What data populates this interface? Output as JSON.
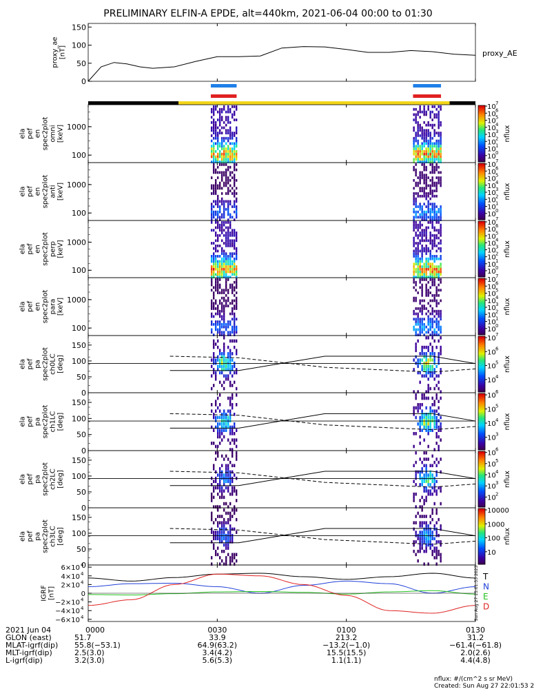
{
  "title": "PRELIMINARY ELFIN-A EPDE, alt=440km, 2021-06-04 00:00 to 01:30",
  "colors": {
    "blue_bar": "#1e7fe8",
    "red_bar": "#e02020",
    "yellow_bar": "#f2d51a",
    "black_bar": "#000000",
    "T": "#000000",
    "N": "#1f3fd8",
    "E": "#21c21a",
    "D": "#e02020"
  },
  "chart_data": [
    {
      "type": "line",
      "panel": "proxy_ae",
      "ylabel": [
        "proxy_ae",
        "[nT]"
      ],
      "legend": "proxy_AE",
      "ylim": [
        0,
        160
      ],
      "yticks": [
        "150",
        "100",
        "50",
        "0"
      ],
      "x_minutes": [
        0,
        3,
        6,
        9,
        12,
        15,
        20,
        25,
        30,
        35,
        40,
        45,
        50,
        55,
        60,
        65,
        70,
        75,
        80,
        85,
        90
      ],
      "values": [
        0,
        40,
        52,
        48,
        40,
        36,
        40,
        55,
        68,
        68,
        70,
        92,
        96,
        95,
        88,
        80,
        80,
        85,
        82,
        75,
        72
      ]
    },
    {
      "type": "segments",
      "panel": "science_zone_bars",
      "blue": [
        [
          28.5,
          34.5
        ],
        [
          75.5,
          82
        ]
      ],
      "red": [
        [
          28.5,
          34.5
        ],
        [
          75.5,
          82
        ]
      ],
      "status": [
        {
          "from": 0,
          "to": 21,
          "color": "black"
        },
        {
          "from": 21,
          "to": 84,
          "color": "yellow"
        },
        {
          "from": 84,
          "to": 90,
          "color": "black"
        }
      ]
    },
    {
      "type": "heatmap",
      "panel": "spec_omni",
      "ylabel": [
        "ela",
        "pef",
        "en",
        "spec2plot",
        "omni",
        "[keV]"
      ],
      "yticks": [
        "1000",
        "100"
      ],
      "cbar_ticks": [
        "10",
        "10",
        "10",
        "10",
        "10",
        "10",
        "10",
        "10"
      ],
      "cbar_exp": [
        "7",
        "6",
        "5",
        "4",
        "3",
        "2",
        "1",
        "0"
      ],
      "cbar_label": "nflux",
      "bursts": [
        [
          28.5,
          34.5,
          1.0
        ],
        [
          75.5,
          82,
          1.0
        ]
      ]
    },
    {
      "type": "heatmap",
      "panel": "spec_anti",
      "ylabel": [
        "ela",
        "pef",
        "en",
        "spec2plot",
        "anti",
        "[keV]"
      ],
      "yticks": [
        "1000",
        "100"
      ],
      "cbar_ticks": [
        "10",
        "10",
        "10",
        "10",
        "10",
        "10",
        "10",
        "10"
      ],
      "cbar_exp": [
        "7",
        "6",
        "5",
        "4",
        "3",
        "2",
        "1",
        "0"
      ],
      "cbar_label": "nflux",
      "bursts": [
        [
          28.5,
          34.5,
          0.35
        ],
        [
          75.5,
          82,
          0.45
        ]
      ]
    },
    {
      "type": "heatmap",
      "panel": "spec_perp",
      "ylabel": [
        "ela",
        "pef",
        "en",
        "spec2plot",
        "perp",
        "[keV]"
      ],
      "yticks": [
        "1000",
        "100"
      ],
      "cbar_ticks": [
        "10",
        "10",
        "10",
        "10",
        "10",
        "10",
        "10",
        "10"
      ],
      "cbar_exp": [
        "7",
        "6",
        "5",
        "4",
        "3",
        "2",
        "1",
        "0"
      ],
      "cbar_label": "nflux",
      "bursts": [
        [
          28.5,
          34.5,
          1.0
        ],
        [
          75.5,
          82,
          1.0
        ]
      ]
    },
    {
      "type": "heatmap",
      "panel": "spec_para",
      "ylabel": [
        "ela",
        "pef",
        "en",
        "spec2plot",
        "para",
        "[keV]"
      ],
      "yticks": [
        "1000",
        "100"
      ],
      "cbar_ticks": [
        "10",
        "10",
        "10",
        "10",
        "10",
        "10",
        "10",
        "10"
      ],
      "cbar_exp": [
        "7",
        "6",
        "5",
        "4",
        "3",
        "2",
        "1",
        "0"
      ],
      "cbar_label": "nflux",
      "bursts": [
        [
          28.5,
          34.5,
          0.35
        ],
        [
          75.5,
          82,
          0.45
        ]
      ]
    },
    {
      "type": "heatmap",
      "panel": "pa_ch0",
      "ylabel": [
        "ela",
        "pef",
        "pa",
        "spec2plot",
        "ch0LC",
        "[deg]"
      ],
      "yticks": [
        "150",
        "100",
        "50",
        "0"
      ],
      "ylim": [
        0,
        180
      ],
      "cbar_ticks": [
        "10",
        "10",
        "10",
        "10"
      ],
      "cbar_exp": [
        "7",
        "6",
        "5",
        "4"
      ],
      "cbar_label": "nflux",
      "bursts": [
        [
          28.5,
          34.5,
          0.9
        ],
        [
          75.5,
          82,
          1.0
        ]
      ]
    },
    {
      "type": "heatmap",
      "panel": "pa_ch1",
      "ylabel": [
        "ela",
        "pef",
        "pa",
        "spec2plot",
        "ch1LC",
        "[deg]"
      ],
      "yticks": [
        "150",
        "100",
        "50",
        "0"
      ],
      "ylim": [
        0,
        180
      ],
      "cbar_ticks": [
        "10",
        "10",
        "10",
        "10"
      ],
      "cbar_exp": [
        "6",
        "5",
        "4",
        "3"
      ],
      "cbar_label": "nflux",
      "bursts": [
        [
          28.5,
          34.5,
          0.8
        ],
        [
          75.5,
          82,
          0.95
        ]
      ]
    },
    {
      "type": "heatmap",
      "panel": "pa_ch2",
      "ylabel": [
        "ela",
        "pef",
        "pa",
        "spec2plot",
        "ch2LC",
        "[deg]"
      ],
      "yticks": [
        "150",
        "100",
        "50",
        "0"
      ],
      "ylim": [
        0,
        180
      ],
      "cbar_ticks": [
        "10",
        "10",
        "10",
        "10",
        "10"
      ],
      "cbar_exp": [
        "6",
        "5",
        "4",
        "3",
        "2"
      ],
      "cbar_label": "nflux",
      "bursts": [
        [
          28.5,
          34.5,
          0.5
        ],
        [
          75.5,
          82,
          0.8
        ]
      ]
    },
    {
      "type": "heatmap",
      "panel": "pa_ch3",
      "ylabel": [
        "ela",
        "pef",
        "pa",
        "spec2plot",
        "ch3LC",
        "[deg]"
      ],
      "yticks": [
        "150",
        "100",
        "50",
        "0"
      ],
      "ylim": [
        0,
        180
      ],
      "cbar_ticks": [
        "10000",
        "1000",
        "100",
        "10"
      ],
      "cbar_label": "nflux",
      "bursts": [
        [
          28.5,
          34.5,
          0.45
        ],
        [
          75.5,
          82,
          0.6
        ]
      ]
    },
    {
      "type": "line",
      "panel": "igrf",
      "ylabel": [
        "IGRF",
        "[nT]"
      ],
      "ylim": [
        -65000,
        65000
      ],
      "yticks": [
        "6×10",
        "4×10",
        "2×10",
        "0",
        "−2×10",
        "−4×10",
        "−6×10"
      ],
      "ytick_exp": "4",
      "legend": [
        "T",
        "N",
        "E",
        "D"
      ],
      "side_stamp": "Sun Aug 27 15:01:53 2023",
      "x_minutes": [
        0,
        10,
        20,
        30,
        40,
        50,
        60,
        70,
        80,
        90
      ],
      "series": [
        {
          "name": "T",
          "values": [
            35000,
            28000,
            36000,
            44000,
            46000,
            38000,
            32000,
            38000,
            46000,
            35000
          ]
        },
        {
          "name": "N",
          "values": [
            15000,
            22000,
            23000,
            15000,
            0,
            18000,
            28000,
            22000,
            0,
            15000
          ]
        },
        {
          "name": "E",
          "values": [
            -3000,
            -4000,
            -1000,
            3000,
            4000,
            2000,
            -2000,
            3000,
            6000,
            -2000
          ]
        },
        {
          "name": "D",
          "values": [
            -28000,
            -15000,
            20000,
            44000,
            40000,
            20000,
            -5000,
            -40000,
            -46000,
            -28000
          ]
        }
      ]
    }
  ],
  "xaxis": {
    "ticks": [
      "0000",
      "0030",
      "0100",
      "0130"
    ],
    "rows": [
      {
        "label": "2021 Jun 04",
        "values": [
          "0000",
          "0030",
          "0100",
          "0130"
        ]
      },
      {
        "label": "GLON (east)",
        "values": [
          "51.7",
          "33.9",
          "213.2",
          "31.2"
        ]
      },
      {
        "label": "MLAT-igrf(dip)",
        "values": [
          "55.8(−53.1)",
          "64.9(63.2)",
          "−13.2(−1.0)",
          "−61.4(−61.8)"
        ]
      },
      {
        "label": "MLT-igrf(dip)",
        "values": [
          "2.5(3.0)",
          "3.4(4.2)",
          "15.5(15.5)",
          "2.0(2.6)"
        ]
      },
      {
        "label": "L-igrf(dip)",
        "values": [
          "3.2(3.0)",
          "5.6(5.3)",
          "1.1(1.1)",
          "4.4(4.8)"
        ]
      }
    ]
  },
  "footer": {
    "line1": "nflux: #/(cm^2 s sr MeV)",
    "line2": "Created: Sun Aug 27 22:01:53 2023"
  }
}
